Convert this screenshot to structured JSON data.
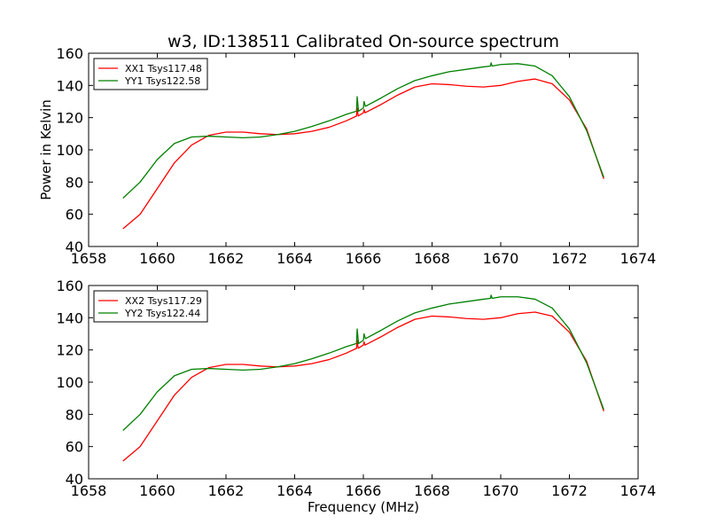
{
  "title": "w3, ID:138511 Calibrated On-source spectrum",
  "chart_data": [
    {
      "type": "line",
      "xlabel": "",
      "ylabel": "Power in Kelvin",
      "xlim": [
        1658,
        1674
      ],
      "ylim": [
        40,
        160
      ],
      "xticks": [
        "1658",
        "1660",
        "1662",
        "1664",
        "1666",
        "1668",
        "1670",
        "1672",
        "1674"
      ],
      "yticks": [
        "40",
        "60",
        "80",
        "100",
        "120",
        "140",
        "160"
      ],
      "legend_placement": "top-left",
      "grid": false,
      "series": [
        {
          "name": "XX1 Tsys117.48",
          "color": "#ff0000",
          "points": [
            [
              1659.0,
              51
            ],
            [
              1659.5,
              60
            ],
            [
              1660.0,
              76
            ],
            [
              1660.5,
              92
            ],
            [
              1661.0,
              103
            ],
            [
              1661.5,
              109
            ],
            [
              1662.0,
              111
            ],
            [
              1662.5,
              111
            ],
            [
              1663.0,
              110
            ],
            [
              1663.5,
              109.5
            ],
            [
              1664.0,
              110
            ],
            [
              1664.5,
              111.5
            ],
            [
              1665.0,
              114
            ],
            [
              1665.5,
              118
            ],
            [
              1665.8,
              121
            ],
            [
              1665.82,
              126
            ],
            [
              1665.85,
              121
            ],
            [
              1666.0,
              123
            ],
            [
              1666.02,
              125
            ],
            [
              1666.05,
              123
            ],
            [
              1666.5,
              128
            ],
            [
              1667.0,
              134
            ],
            [
              1667.5,
              139
            ],
            [
              1668.0,
              141
            ],
            [
              1668.5,
              140.5
            ],
            [
              1669.0,
              139.5
            ],
            [
              1669.5,
              139
            ],
            [
              1670.0,
              140
            ],
            [
              1670.5,
              142.5
            ],
            [
              1671.0,
              144
            ],
            [
              1671.5,
              141
            ],
            [
              1672.0,
              131
            ],
            [
              1672.5,
              113
            ],
            [
              1673.0,
              82
            ]
          ]
        },
        {
          "name": "YY1 Tsys122.58",
          "color": "#008000",
          "points": [
            [
              1659.0,
              70
            ],
            [
              1659.5,
              80
            ],
            [
              1660.0,
              94
            ],
            [
              1660.5,
              104
            ],
            [
              1661.0,
              108
            ],
            [
              1661.5,
              108.5
            ],
            [
              1662.0,
              108
            ],
            [
              1662.5,
              107.5
            ],
            [
              1663.0,
              108
            ],
            [
              1663.5,
              109.5
            ],
            [
              1664.0,
              111.5
            ],
            [
              1664.5,
              114.5
            ],
            [
              1665.0,
              118
            ],
            [
              1665.5,
              122
            ],
            [
              1665.8,
              124
            ],
            [
              1665.82,
              133
            ],
            [
              1665.86,
              124
            ],
            [
              1666.0,
              126
            ],
            [
              1666.02,
              130
            ],
            [
              1666.06,
              127
            ],
            [
              1666.5,
              132
            ],
            [
              1667.0,
              138
            ],
            [
              1667.5,
              143
            ],
            [
              1668.0,
              146
            ],
            [
              1668.5,
              148.5
            ],
            [
              1669.0,
              150
            ],
            [
              1669.5,
              151.5
            ],
            [
              1669.7,
              152
            ],
            [
              1669.72,
              154
            ],
            [
              1669.75,
              152
            ],
            [
              1670.0,
              153
            ],
            [
              1670.5,
              153.5
            ],
            [
              1671.0,
              152
            ],
            [
              1671.5,
              146
            ],
            [
              1672.0,
              133
            ],
            [
              1672.5,
              112
            ],
            [
              1673.0,
              83
            ]
          ]
        }
      ]
    },
    {
      "type": "line",
      "xlabel": "Frequency (MHz)",
      "ylabel": "",
      "xlim": [
        1658,
        1674
      ],
      "ylim": [
        40,
        160
      ],
      "xticks": [
        "1658",
        "1660",
        "1662",
        "1664",
        "1666",
        "1668",
        "1670",
        "1672",
        "1674"
      ],
      "yticks": [
        "40",
        "60",
        "80",
        "100",
        "120",
        "140",
        "160"
      ],
      "legend_placement": "top-left",
      "grid": false,
      "series": [
        {
          "name": "XX2 Tsys117.29",
          "color": "#ff0000",
          "points": [
            [
              1659.0,
              51
            ],
            [
              1659.5,
              60
            ],
            [
              1660.0,
              76
            ],
            [
              1660.5,
              92
            ],
            [
              1661.0,
              103
            ],
            [
              1661.5,
              109
            ],
            [
              1662.0,
              111
            ],
            [
              1662.5,
              111
            ],
            [
              1663.0,
              110
            ],
            [
              1663.5,
              109.5
            ],
            [
              1664.0,
              110
            ],
            [
              1664.5,
              111.5
            ],
            [
              1665.0,
              114
            ],
            [
              1665.5,
              118
            ],
            [
              1665.8,
              121
            ],
            [
              1665.82,
              126
            ],
            [
              1665.85,
              121
            ],
            [
              1666.0,
              123
            ],
            [
              1666.02,
              125
            ],
            [
              1666.05,
              123
            ],
            [
              1666.5,
              128
            ],
            [
              1667.0,
              134
            ],
            [
              1667.5,
              139
            ],
            [
              1668.0,
              141
            ],
            [
              1668.5,
              140.5
            ],
            [
              1669.0,
              139.5
            ],
            [
              1669.5,
              139
            ],
            [
              1670.0,
              140
            ],
            [
              1670.5,
              142.5
            ],
            [
              1671.0,
              143.5
            ],
            [
              1671.5,
              141
            ],
            [
              1672.0,
              131
            ],
            [
              1672.5,
              113
            ],
            [
              1673.0,
              82
            ]
          ]
        },
        {
          "name": "YY2 Tsys122.44",
          "color": "#008000",
          "points": [
            [
              1659.0,
              70
            ],
            [
              1659.5,
              80
            ],
            [
              1660.0,
              94
            ],
            [
              1660.5,
              104
            ],
            [
              1661.0,
              108
            ],
            [
              1661.5,
              108.5
            ],
            [
              1662.0,
              108
            ],
            [
              1662.5,
              107.5
            ],
            [
              1663.0,
              108
            ],
            [
              1663.5,
              109.5
            ],
            [
              1664.0,
              111.5
            ],
            [
              1664.5,
              114.5
            ],
            [
              1665.0,
              118
            ],
            [
              1665.5,
              122
            ],
            [
              1665.8,
              124
            ],
            [
              1665.82,
              133
            ],
            [
              1665.86,
              124
            ],
            [
              1666.0,
              126
            ],
            [
              1666.02,
              130
            ],
            [
              1666.06,
              127
            ],
            [
              1666.5,
              132
            ],
            [
              1667.0,
              138
            ],
            [
              1667.5,
              143
            ],
            [
              1668.0,
              146
            ],
            [
              1668.5,
              148.5
            ],
            [
              1669.0,
              150
            ],
            [
              1669.5,
              151.5
            ],
            [
              1669.7,
              152
            ],
            [
              1669.72,
              154
            ],
            [
              1669.75,
              152
            ],
            [
              1670.0,
              153
            ],
            [
              1670.5,
              153
            ],
            [
              1671.0,
              151.5
            ],
            [
              1671.5,
              146
            ],
            [
              1672.0,
              133
            ],
            [
              1672.5,
              112
            ],
            [
              1673.0,
              83
            ]
          ]
        }
      ]
    }
  ]
}
